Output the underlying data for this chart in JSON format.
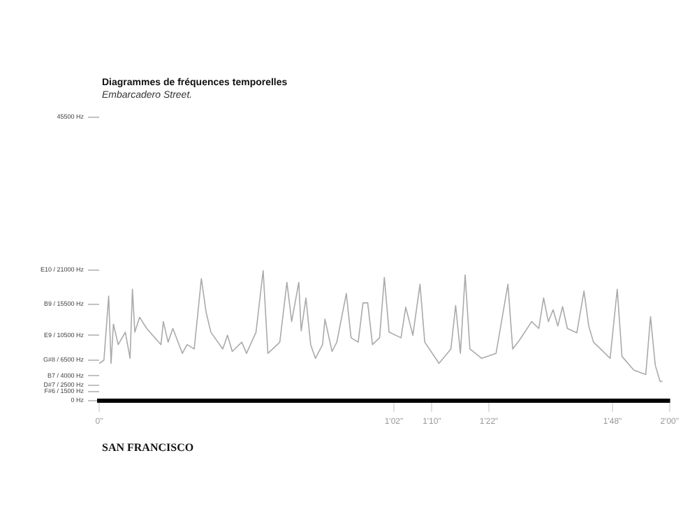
{
  "chart_data": {
    "type": "line",
    "title": "Diagrammes de fréquences temporelles",
    "subtitle": "Embarcadero Street.",
    "annotations": [
      "SAN FRANCISCO"
    ],
    "categories": [
      "0\"",
      null,
      null,
      null,
      null,
      null,
      null,
      null,
      null,
      null,
      null,
      null,
      null,
      null,
      null,
      null,
      null,
      null,
      null,
      null,
      null,
      null,
      null,
      null,
      null,
      null,
      null,
      null,
      null,
      null,
      null,
      null,
      null,
      null,
      null,
      null,
      null,
      null,
      null,
      null,
      null,
      null,
      null,
      null,
      null,
      null,
      null,
      null,
      null,
      null,
      null,
      null,
      null,
      null,
      null,
      null,
      null,
      null,
      null,
      null,
      null,
      null,
      null,
      null,
      null,
      null,
      null,
      null,
      null,
      null,
      null,
      null,
      null,
      null,
      null,
      null,
      null,
      null,
      null,
      null,
      null,
      null,
      null,
      null,
      null,
      null,
      null,
      null,
      null,
      null,
      null,
      null,
      null,
      null,
      null,
      null,
      null,
      null,
      null,
      null,
      null,
      null,
      null,
      null,
      null,
      null,
      null,
      null,
      null,
      null,
      null,
      null,
      null,
      null,
      null,
      null,
      null,
      null,
      null,
      null,
      null,
      null,
      null,
      null,
      "1'02\"",
      null,
      null,
      null,
      null,
      null,
      null,
      null,
      null,
      null,
      null,
      null,
      null,
      null,
      null,
      null,
      "1'10\"",
      null,
      null,
      null,
      null,
      null,
      null,
      null,
      null,
      null,
      null,
      null,
      null,
      null,
      null,
      null,
      null,
      null,
      null,
      null,
      null,
      null,
      null,
      null,
      "1'22\"",
      null,
      null,
      null,
      null,
      null,
      null,
      null,
      null,
      null,
      null,
      null,
      null,
      null,
      null,
      null,
      null,
      null,
      null,
      null,
      null,
      null,
      null,
      null,
      null,
      null,
      null,
      null,
      null,
      null,
      null,
      null,
      null,
      null,
      null,
      null,
      null,
      null,
      null,
      null,
      null,
      null,
      null,
      null,
      null,
      null,
      null,
      null,
      null,
      null,
      null,
      null,
      "1'48\"",
      null,
      null,
      null,
      null,
      null,
      null,
      null,
      null,
      null,
      null,
      null,
      null,
      null,
      null,
      null,
      null,
      null,
      null,
      null,
      null,
      null,
      null,
      null,
      "2'00\""
    ],
    "series": [
      {
        "color": "#aaaaaa",
        "values": [
          6000,
          null,
          6500,
          null,
          16800,
          6000,
          12300,
          null,
          9000,
          null,
          null,
          11000,
          null,
          6800,
          17900,
          11000,
          null,
          13400,
          null,
          null,
          11600,
          null,
          null,
          null,
          null,
          null,
          9000,
          12700,
          null,
          9400,
          null,
          11600,
          null,
          null,
          null,
          7600,
          null,
          9000,
          null,
          null,
          8300,
          null,
          null,
          19600,
          null,
          14200,
          null,
          11000,
          null,
          null,
          null,
          null,
          8300,
          null,
          10500,
          null,
          7900,
          null,
          null,
          null,
          9400,
          null,
          7600,
          null,
          null,
          null,
          11000,
          null,
          null,
          20900,
          null,
          7600,
          null,
          8300,
          null,
          null,
          9400,
          null,
          null,
          19000,
          null,
          12700,
          null,
          null,
          19000,
          11200,
          null,
          16500,
          null,
          9000,
          null,
          6800,
          null,
          null,
          9000,
          13100,
          null,
          null,
          7900,
          null,
          9400,
          null,
          null,
          null,
          17200,
          null,
          10100,
          null,
          null,
          9400,
          null,
          15700,
          null,
          15700,
          null,
          9000,
          null,
          null,
          10100,
          null,
          19800,
          null,
          11000,
          null,
          null,
          null,
          null,
          10100,
          null,
          15000,
          null,
          null,
          10500,
          null,
          null,
          18700,
          null,
          9400,
          null,
          null,
          null,
          null,
          null,
          6000,
          null,
          null,
          null,
          null,
          8300,
          null,
          15300,
          null,
          7600,
          null,
          20200,
          null,
          8300,
          null,
          null,
          null,
          null,
          6800,
          null,
          null,
          null,
          null,
          null,
          7600,
          null,
          null,
          null,
          null,
          18700,
          null,
          8300,
          null,
          null,
          9800,
          null,
          null,
          null,
          null,
          12700,
          null,
          null,
          11600,
          null,
          16500,
          null,
          12700,
          null,
          14600,
          null,
          12000,
          null,
          15100,
          null,
          11600,
          null,
          null,
          null,
          10900,
          null,
          null,
          17600,
          null,
          12000,
          null,
          9400,
          null,
          null,
          8300,
          null,
          null,
          null,
          6800,
          null,
          null,
          17900,
          null,
          7100,
          null,
          null,
          null,
          null,
          4900,
          null,
          null,
          null,
          null,
          4200,
          null,
          13500,
          null,
          5700,
          null,
          3100,
          3100,
          null,
          null,
          null
        ]
      }
    ],
    "ylim": [
      0,
      45500
    ],
    "yticks": [
      {
        "value": 0,
        "label": "0 Hz"
      },
      {
        "value": 1500,
        "label": "F#6 / 1500 Hz"
      },
      {
        "value": 2500,
        "label": "D#7 / 2500 Hz"
      },
      {
        "value": 4000,
        "label": "B7 / 4000 Hz"
      },
      {
        "value": 6500,
        "label": "G#8 / 6500 Hz"
      },
      {
        "value": 10500,
        "label": "E9 / 10500 Hz"
      },
      {
        "value": 15500,
        "label": "B9 / 15500 Hz"
      },
      {
        "value": 21000,
        "label": "E10 / 21000 Hz"
      },
      {
        "value": 45500,
        "label": "45500 Hz"
      }
    ],
    "legend": false,
    "grid": false,
    "marker": "none",
    "line_style": "solid"
  }
}
